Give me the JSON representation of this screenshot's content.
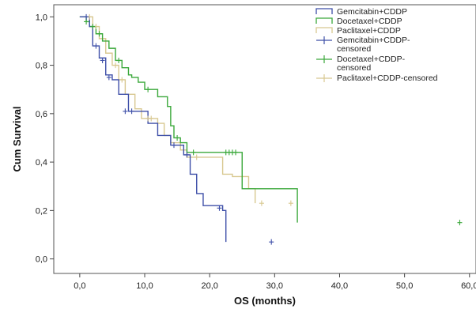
{
  "chart_data": {
    "type": "line",
    "subtype": "kaplan-meier step",
    "xlabel": "OS (months)",
    "ylabel": "Cum Survival",
    "xlim": [
      -4,
      61
    ],
    "ylim": [
      -0.06,
      1.05
    ],
    "xticks": [
      0,
      10,
      20,
      30,
      40,
      50,
      60
    ],
    "xtick_labels": [
      "0,0",
      "10,0",
      "20,0",
      "30,0",
      "40,0",
      "50,0",
      "60,0"
    ],
    "yticks": [
      0,
      0.2,
      0.4,
      0.6,
      0.8,
      1.0
    ],
    "ytick_labels": [
      "0,0",
      "0,2",
      "0,4",
      "0,6",
      "0,8",
      "1,0"
    ],
    "grid": false,
    "legend_position": "top-right",
    "series": [
      {
        "name": "Gemcitabin+CDDP",
        "censored_name": "Gemcitabin+CDDP-censored",
        "color": "#3e4fa8",
        "x": [
          0.5,
          1.5,
          2.0,
          3.0,
          4.0,
          5.0,
          6.0,
          7.5,
          9.0,
          10.5,
          12.0,
          13.0,
          14.0,
          16.0,
          17.0,
          18.0,
          19.0,
          20.0,
          21.0,
          22.0,
          22.5
        ],
        "y": [
          1.0,
          0.96,
          0.88,
          0.83,
          0.76,
          0.74,
          0.68,
          0.61,
          0.61,
          0.56,
          0.51,
          0.51,
          0.47,
          0.43,
          0.35,
          0.27,
          0.22,
          0.22,
          0.22,
          0.2,
          0.07
        ],
        "censored": [
          [
            1.0,
            1.0
          ],
          [
            2.5,
            0.88
          ],
          [
            3.5,
            0.82
          ],
          [
            4.5,
            0.75
          ],
          [
            7.0,
            0.61
          ],
          [
            8.0,
            0.61
          ],
          [
            14.5,
            0.47
          ],
          [
            16.5,
            0.43
          ],
          [
            21.5,
            0.21
          ],
          [
            29.5,
            0.07
          ]
        ]
      },
      {
        "name": "Docetaxel+CDDP",
        "censored_name": "Docetaxel+CDDP-censored",
        "color": "#3aa83a",
        "x": [
          0.5,
          1.0,
          1.5,
          2.5,
          3.5,
          4.5,
          5.5,
          6.5,
          7.5,
          8.0,
          9.0,
          10.0,
          12.0,
          13.5,
          14.0,
          14.5,
          15.5,
          16.5,
          25.0,
          33.5
        ],
        "y": [
          1.0,
          0.98,
          0.96,
          0.93,
          0.9,
          0.87,
          0.82,
          0.79,
          0.76,
          0.75,
          0.73,
          0.7,
          0.67,
          0.63,
          0.55,
          0.5,
          0.48,
          0.44,
          0.29,
          0.15
        ],
        "censored": [
          [
            1.0,
            0.98
          ],
          [
            2.0,
            0.96
          ],
          [
            3.0,
            0.93
          ],
          [
            6.0,
            0.82
          ],
          [
            10.5,
            0.7
          ],
          [
            15.0,
            0.5
          ],
          [
            17.5,
            0.44
          ],
          [
            22.5,
            0.44
          ],
          [
            23.0,
            0.44
          ],
          [
            23.5,
            0.44
          ],
          [
            24.0,
            0.44
          ],
          [
            58.5,
            0.15
          ]
        ]
      },
      {
        "name": "Paclitaxel+CDDP",
        "censored_name": "Paclitaxel+CDDP-censored",
        "color": "#d8c890",
        "x": [
          0.5,
          2.0,
          3.0,
          4.0,
          5.0,
          6.0,
          7.0,
          8.5,
          9.5,
          12.0,
          13.0,
          14.0,
          15.5,
          16.5,
          22.0,
          23.5,
          26.0,
          27.0
        ],
        "y": [
          1.0,
          0.96,
          0.91,
          0.85,
          0.8,
          0.74,
          0.68,
          0.62,
          0.58,
          0.56,
          0.51,
          0.48,
          0.45,
          0.42,
          0.35,
          0.34,
          0.29,
          0.23
        ],
        "censored": [
          [
            1.5,
            1.0
          ],
          [
            2.5,
            0.96
          ],
          [
            5.5,
            0.8
          ],
          [
            6.5,
            0.74
          ],
          [
            10.5,
            0.58
          ],
          [
            11.0,
            0.58
          ],
          [
            18.0,
            0.42
          ],
          [
            28.0,
            0.23
          ],
          [
            32.5,
            0.23
          ]
        ]
      }
    ]
  }
}
